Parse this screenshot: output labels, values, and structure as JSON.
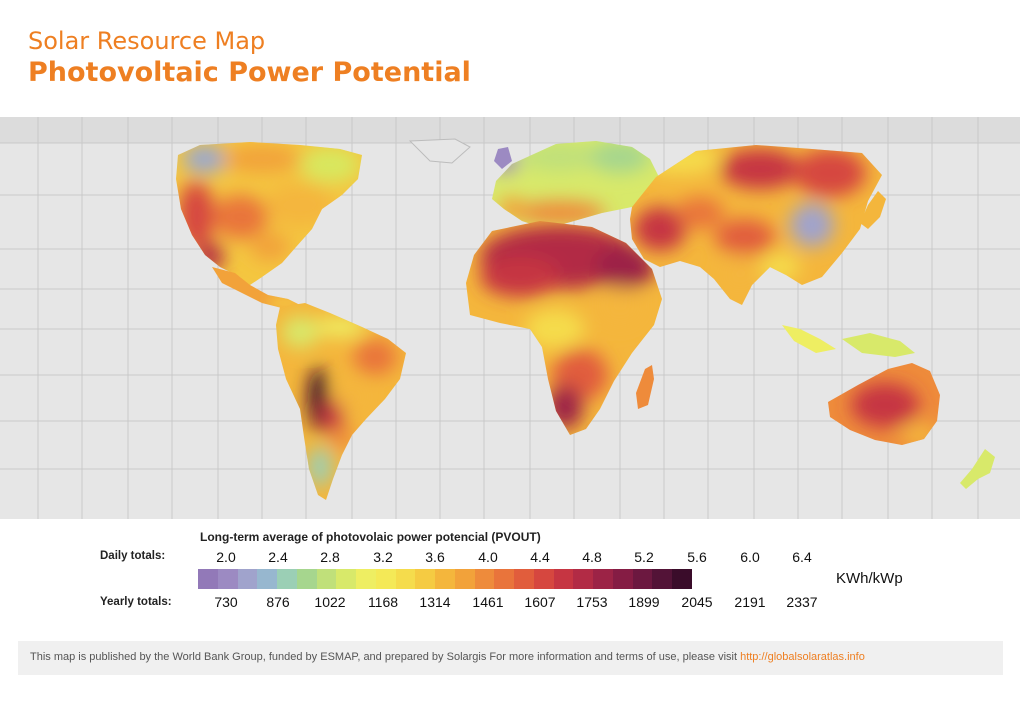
{
  "header": {
    "subtitle": "Solar Resource Map",
    "title": "Photovoltaic Power Potential"
  },
  "legend": {
    "heading": "Long-term average of photovolaic power potencial (PVOUT)",
    "daily_label": "Daily totals:",
    "yearly_label": "Yearly totals:",
    "daily_values": [
      "2.0",
      "2.4",
      "2.8",
      "3.2",
      "3.6",
      "4.0",
      "4.4",
      "4.8",
      "5.2",
      "5.6",
      "6.0",
      "6.4"
    ],
    "yearly_values": [
      "730",
      "876",
      "1022",
      "1168",
      "1314",
      "1461",
      "1607",
      "1753",
      "1899",
      "2045",
      "2191",
      "2337"
    ],
    "unit": "KWh/kWp",
    "colors": [
      "#9279b8",
      "#9c8ac2",
      "#a0a3cc",
      "#97b7cf",
      "#9bcfb5",
      "#a6d68e",
      "#c0e07a",
      "#d8e96a",
      "#eeee62",
      "#f4e957",
      "#f5dc4c",
      "#f5cb42",
      "#f4b63c",
      "#f2a23a",
      "#ee8b3b",
      "#e9743b",
      "#e15d3c",
      "#d6473f",
      "#c63542",
      "#b22b45",
      "#9c2346",
      "#851c44",
      "#6c1840",
      "#531337",
      "#3a0c2a"
    ]
  },
  "footer": {
    "text": "This map is published by the World Bank Group, funded by ESMAP, and prepared by Solargis For more information and terms of use, please visit",
    "link": "http://globalsolaratlas.info"
  },
  "map": {
    "background": "#e6e6e6",
    "grid_color": "#c8c8c8",
    "arctic_color": "#dedede"
  }
}
